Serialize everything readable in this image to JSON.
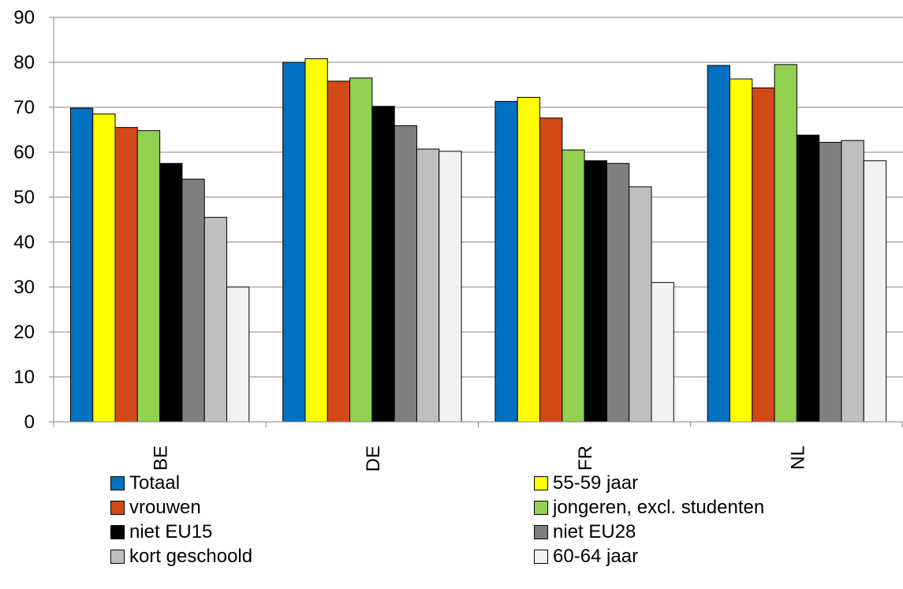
{
  "chart_data": {
    "type": "bar",
    "categories": [
      "BE",
      "DE",
      "FR",
      "NL"
    ],
    "ylim": [
      0,
      90
    ],
    "yticks": [
      0,
      10,
      20,
      30,
      40,
      50,
      60,
      70,
      80,
      90
    ],
    "grid": true,
    "legend_position": "bottom",
    "series": [
      {
        "name": "Totaal",
        "color": "#0070C0",
        "values": [
          69.8,
          80.0,
          71.3,
          79.3
        ]
      },
      {
        "name": "55-59 jaar",
        "color": "#FFFF00",
        "values": [
          68.5,
          80.8,
          72.2,
          76.3
        ]
      },
      {
        "name": "vrouwen",
        "color": "#D34817",
        "values": [
          65.5,
          75.8,
          67.6,
          74.3
        ]
      },
      {
        "name": "jongeren, excl. studenten",
        "color": "#92D050",
        "values": [
          64.8,
          76.5,
          60.5,
          79.5
        ]
      },
      {
        "name": "niet EU15",
        "color": "#000000",
        "values": [
          57.5,
          70.2,
          58.1,
          63.8
        ]
      },
      {
        "name": "niet EU28",
        "color": "#7F7F7F",
        "values": [
          54.0,
          65.9,
          57.5,
          62.2
        ]
      },
      {
        "name": "kort geschoold",
        "color": "#BFBFBF",
        "values": [
          45.5,
          60.7,
          52.3,
          62.6
        ]
      },
      {
        "name": "60-64 jaar",
        "color": "#F2F2F2",
        "values": [
          30.0,
          60.2,
          31.0,
          58.1
        ]
      }
    ]
  }
}
